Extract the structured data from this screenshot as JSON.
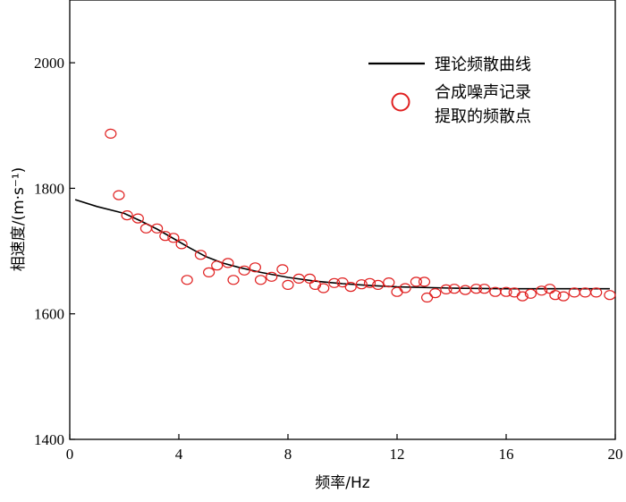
{
  "chart_data": {
    "type": "scatter",
    "xlabel": "频率/Hz",
    "ylabel": "相速度/(m·s⁻¹)",
    "xlim": [
      0,
      20
    ],
    "ylim": [
      1400,
      2100
    ],
    "xticks": [
      0,
      4,
      8,
      12,
      16,
      20
    ],
    "xtick_labels": [
      "0",
      "4",
      "8",
      "12",
      "16",
      "20"
    ],
    "yticks": [
      1400,
      1600,
      1800,
      2000
    ],
    "ytick_labels": [
      "1400",
      "1600",
      "1800",
      "2000"
    ],
    "grid": false,
    "legend_position": "top-right",
    "legend": {
      "line_label": "理论频散曲线",
      "marker_label_line1": "合成噪声记录",
      "marker_label_line2": "提取的频散点"
    },
    "series": [
      {
        "kind": "line",
        "color": "#000000",
        "x": [
          0.2,
          1.0,
          2.0,
          2.6,
          3.2,
          3.8,
          4.4,
          5.0,
          5.6,
          6.2,
          7.0,
          8.0,
          9.0,
          10.0,
          11.0,
          12.0,
          14.0,
          16.0,
          18.0,
          19.8
        ],
        "y": [
          1782,
          1771,
          1760,
          1748,
          1735,
          1720,
          1705,
          1691,
          1681,
          1674,
          1666,
          1658,
          1652,
          1648,
          1645,
          1643,
          1641,
          1640,
          1640,
          1640
        ]
      },
      {
        "kind": "scatter",
        "color": "#e02020",
        "x": [
          1.5,
          1.8,
          2.1,
          2.5,
          2.8,
          3.2,
          3.5,
          3.8,
          4.1,
          4.3,
          4.8,
          5.1,
          5.4,
          5.8,
          6.0,
          6.4,
          6.8,
          7.0,
          7.4,
          7.8,
          8.0,
          8.4,
          8.8,
          9.0,
          9.3,
          9.7,
          10.0,
          10.3,
          10.7,
          11.0,
          11.3,
          11.7,
          12.0,
          12.3,
          12.7,
          13.0,
          13.1,
          13.4,
          13.8,
          14.1,
          14.5,
          14.9,
          15.2,
          15.6,
          16.0,
          16.3,
          16.6,
          16.9,
          17.3,
          17.6,
          17.8,
          18.1,
          18.5,
          18.9,
          19.3,
          19.8
        ],
        "y": [
          1887,
          1789,
          1757,
          1752,
          1736,
          1736,
          1724,
          1721,
          1711,
          1654,
          1694,
          1666,
          1677,
          1681,
          1654,
          1669,
          1674,
          1654,
          1659,
          1671,
          1646,
          1656,
          1656,
          1646,
          1641,
          1649,
          1650,
          1643,
          1647,
          1649,
          1646,
          1650,
          1635,
          1641,
          1651,
          1651,
          1626,
          1633,
          1639,
          1640,
          1638,
          1640,
          1640,
          1635,
          1635,
          1634,
          1628,
          1632,
          1637,
          1640,
          1630,
          1628,
          1634,
          1634,
          1634,
          1630
        ]
      }
    ]
  }
}
